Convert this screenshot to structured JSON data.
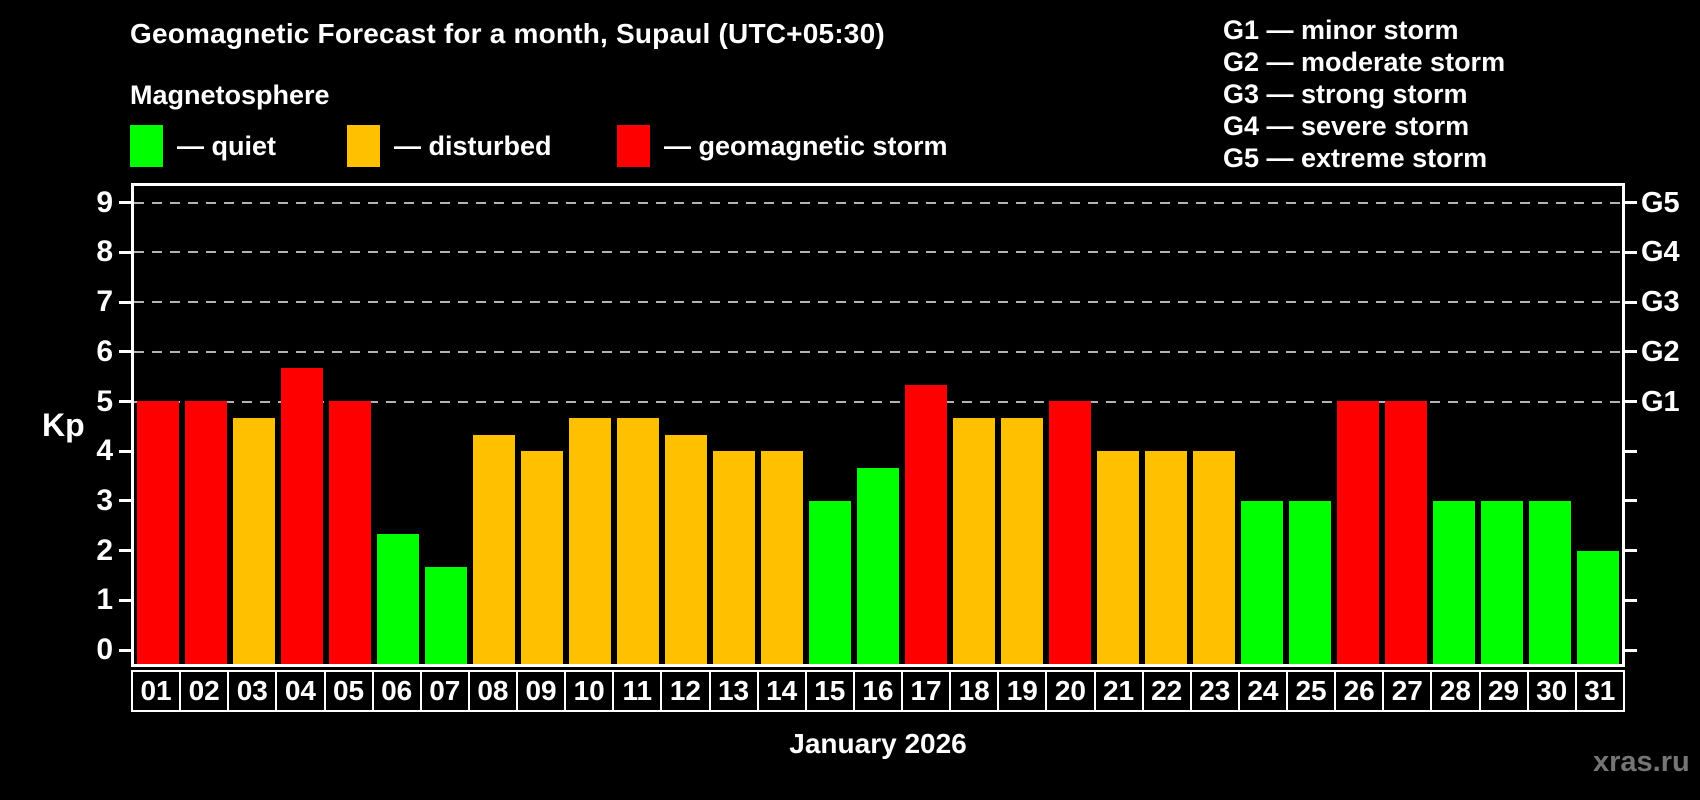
{
  "header": {
    "title": "Geomagnetic Forecast for a month, Supaul (UTC+05:30)",
    "subtitle": "Magnetosphere"
  },
  "legend": {
    "items": [
      {
        "key": "quiet",
        "color": "#00ff00",
        "label": "— quiet"
      },
      {
        "key": "disturbed",
        "color": "#ffc000",
        "label": "— disturbed"
      },
      {
        "key": "storm",
        "color": "#ff0000",
        "label": "— geomagnetic storm"
      }
    ]
  },
  "g_legend": {
    "items": [
      "G1 — minor storm",
      "G2 — moderate storm",
      "G3 — strong storm",
      "G4 — severe storm",
      "G5 — extreme storm"
    ]
  },
  "axes": {
    "kp_label": "Kp",
    "month_label": "January 2026",
    "y_tick_labels": [
      "0",
      "1",
      "2",
      "3",
      "4",
      "5",
      "6",
      "7",
      "8",
      "9"
    ],
    "right_axis_labels": {
      "5": "G1",
      "6": "G2",
      "7": "G3",
      "8": "G4",
      "9": "G5"
    }
  },
  "watermark": "xras.ru",
  "chart_data": {
    "type": "bar",
    "title": "Geomagnetic Forecast for a month, Supaul (UTC+05:30)",
    "subtitle": "Magnetosphere",
    "xlabel": "January 2026",
    "ylabel": "Kp",
    "ylim": [
      0,
      9
    ],
    "grid": "horizontal dashed lines at Kp 5-9 (G1-G5 levels)",
    "legend_position": "top-left",
    "categories": [
      "01",
      "02",
      "03",
      "04",
      "05",
      "06",
      "07",
      "08",
      "09",
      "10",
      "11",
      "12",
      "13",
      "14",
      "15",
      "16",
      "17",
      "18",
      "19",
      "20",
      "21",
      "22",
      "23",
      "24",
      "25",
      "26",
      "27",
      "28",
      "29",
      "30",
      "31"
    ],
    "values": [
      5.0,
      5.0,
      4.67,
      5.67,
      5.0,
      2.33,
      1.67,
      4.33,
      4.0,
      4.67,
      4.67,
      4.33,
      4.0,
      4.0,
      3.0,
      3.67,
      5.33,
      4.67,
      4.67,
      5.0,
      4.0,
      4.0,
      4.0,
      3.0,
      3.0,
      5.0,
      5.0,
      3.0,
      3.0,
      3.0,
      2.0
    ],
    "levels": [
      "storm",
      "storm",
      "disturbed",
      "storm",
      "storm",
      "quiet",
      "quiet",
      "disturbed",
      "disturbed",
      "disturbed",
      "disturbed",
      "disturbed",
      "disturbed",
      "disturbed",
      "quiet",
      "quiet",
      "storm",
      "disturbed",
      "disturbed",
      "storm",
      "disturbed",
      "disturbed",
      "disturbed",
      "quiet",
      "quiet",
      "storm",
      "storm",
      "quiet",
      "quiet",
      "quiet",
      "quiet"
    ],
    "level_colors": {
      "quiet": "#00ff00",
      "disturbed": "#ffc000",
      "storm": "#ff0000"
    },
    "y_ticks": [
      0,
      1,
      2,
      3,
      4,
      5,
      6,
      7,
      8,
      9
    ],
    "grid_levels": [
      5,
      6,
      7,
      8,
      9
    ]
  }
}
